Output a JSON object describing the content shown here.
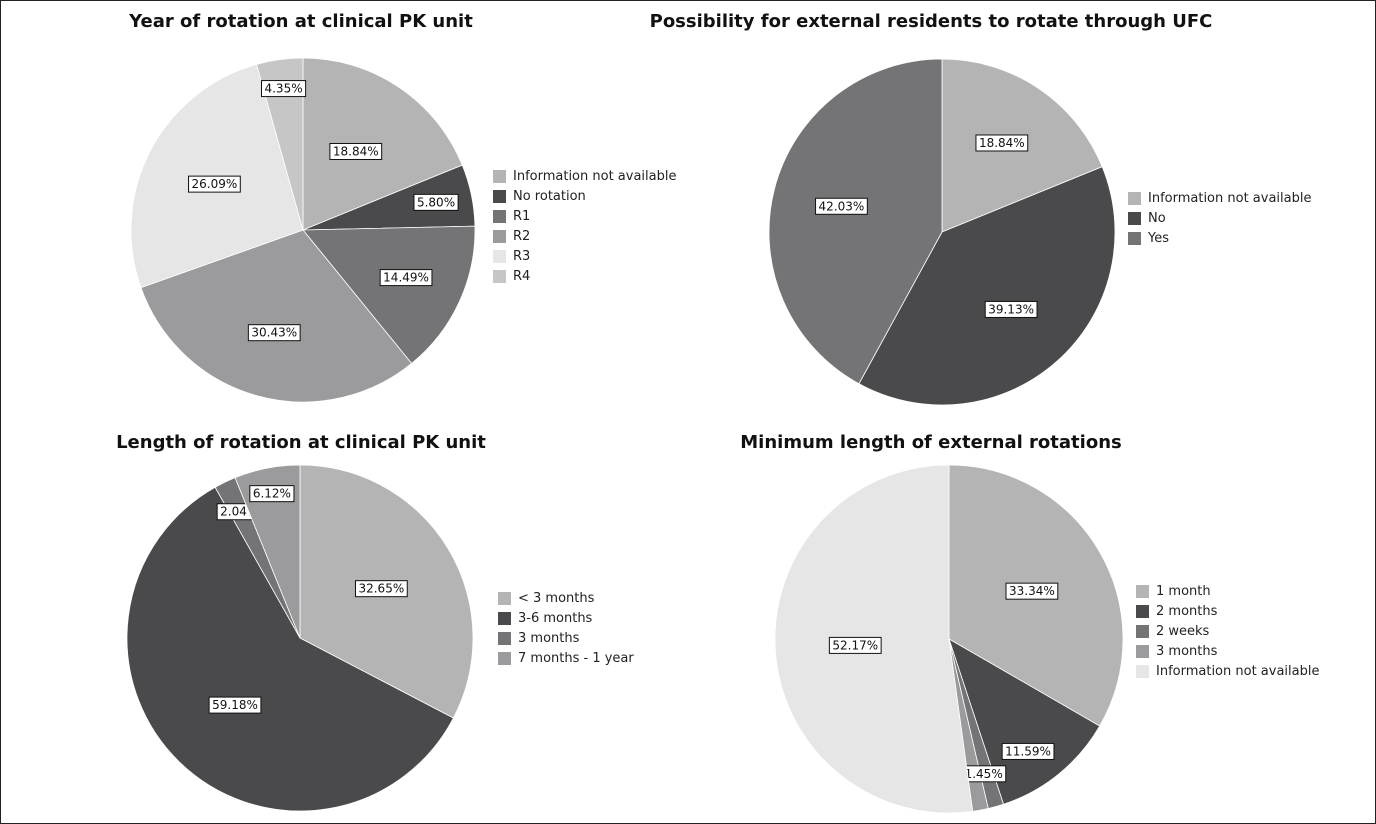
{
  "chart_data": [
    {
      "type": "pie",
      "title": "Year of rotation at clinical PK unit",
      "categories": [
        "Information not available",
        "No rotation",
        "R1",
        "R2",
        "R3",
        "R4"
      ],
      "values": [
        18.84,
        5.8,
        14.49,
        30.43,
        26.09,
        4.35
      ],
      "labels": [
        "18.84%",
        "5.80%",
        "14.49%",
        "30.43%",
        "26.09%",
        "4.35%"
      ],
      "colors": [
        "#b4b4b4",
        "#4a4a4c",
        "#747476",
        "#9b9b9d",
        "#e6e6e6",
        "#c6c6c6"
      ],
      "legend": "right"
    },
    {
      "type": "pie",
      "title": "Possibility for external residents to rotate through UFC",
      "categories": [
        "Information not available",
        "No",
        "Yes"
      ],
      "values": [
        18.84,
        39.13,
        42.03
      ],
      "labels": [
        "18.84%",
        "39.13%",
        "42.03%"
      ],
      "colors": [
        "#b4b4b4",
        "#4a4a4c",
        "#747476"
      ],
      "legend": "right"
    },
    {
      "type": "pie",
      "title": "Length of rotation at clinical PK unit",
      "categories": [
        "< 3 months",
        "3-6 months",
        "3 months",
        "7 months - 1 year"
      ],
      "values": [
        32.65,
        59.18,
        2.04,
        6.12
      ],
      "labels": [
        "32.65%",
        "59.18%",
        "2.04%",
        "6.12%"
      ],
      "colors": [
        "#b4b4b4",
        "#4a4a4c",
        "#747476",
        "#9b9b9d"
      ],
      "legend": "right"
    },
    {
      "type": "pie",
      "title": "Minimum length of external rotations",
      "categories": [
        "1 month",
        "2 months",
        "2 weeks",
        "3 months",
        "Information not available"
      ],
      "values": [
        33.34,
        11.59,
        1.45,
        1.45,
        52.17
      ],
      "labels": [
        "33.34%",
        "11.59%",
        "",
        "1.45%",
        "52.17%"
      ],
      "colors": [
        "#b4b4b4",
        "#4a4a4c",
        "#747476",
        "#9b9b9d",
        "#e6e6e6"
      ],
      "legend": "right"
    }
  ]
}
